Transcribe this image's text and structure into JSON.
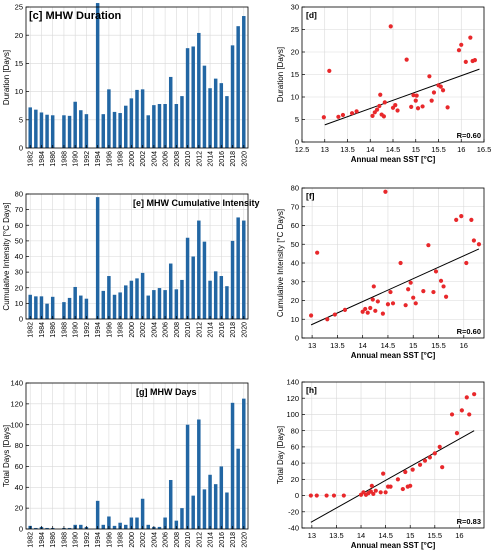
{
  "colors": {
    "bar": "#2266a3",
    "dot": "#e8282b",
    "fit": "#000000",
    "grid": "#d9d9d9"
  },
  "chart_data": [
    {
      "id": "c",
      "type": "bar",
      "title": "[c] MHW Duration",
      "ylabel": "Duration [Days]",
      "ylim": [
        0,
        25
      ],
      "yticks": [
        0,
        5,
        10,
        15,
        20,
        25
      ],
      "x": [
        1982,
        1983,
        1984,
        1985,
        1986,
        1987,
        1988,
        1989,
        1990,
        1991,
        1992,
        1993,
        1994,
        1995,
        1996,
        1997,
        1998,
        1999,
        2000,
        2001,
        2002,
        2003,
        2004,
        2005,
        2006,
        2007,
        2008,
        2009,
        2010,
        2011,
        2012,
        2013,
        2014,
        2015,
        2016,
        2017,
        2018,
        2019,
        2020
      ],
      "values": [
        7.2,
        6.8,
        6.3,
        5.9,
        5.8,
        null,
        5.8,
        5.7,
        8.2,
        6.7,
        6.0,
        null,
        25.7,
        6.0,
        10.4,
        6.4,
        6.2,
        7.5,
        8.8,
        10.3,
        10.4,
        5.8,
        7.6,
        7.8,
        7.8,
        12.6,
        7.8,
        9.2,
        17.7,
        18.0,
        20.4,
        14.6,
        10.6,
        12.3,
        11.5,
        9.2,
        18.2,
        21.6,
        23.4
      ],
      "xticklabels": [
        "1982",
        "1984",
        "1986",
        "1988",
        "1990",
        "1992",
        "1994",
        "1996",
        "1998",
        "2000",
        "2002",
        "2004",
        "2006",
        "2008",
        "2010",
        "2012",
        "2014",
        "2016",
        "2018",
        "2020"
      ],
      "grid": true
    },
    {
      "id": "d",
      "type": "scatter",
      "title": "[d]",
      "xlabel": "Annual mean SST [°C]",
      "ylabel": "Duration [Days]",
      "xlim": [
        12.5,
        16.5
      ],
      "ylim": [
        0,
        30
      ],
      "xticks": [
        12.5,
        13,
        13.5,
        14,
        14.5,
        15,
        15.5,
        16,
        16.5
      ],
      "xticklabels": [
        "12.5",
        "13",
        "13.5",
        "14",
        "14.5",
        "15",
        "15.5",
        "16",
        "16.5"
      ],
      "yticks": [
        0,
        5,
        10,
        15,
        20,
        25,
        30
      ],
      "r_label": "R=0.60",
      "fit_line": [
        [
          13.0,
          3.8
        ],
        [
          16.4,
          16.2
        ]
      ],
      "points": [
        [
          12.98,
          5.5
        ],
        [
          13.1,
          15.8
        ],
        [
          13.3,
          5.6
        ],
        [
          13.4,
          6.0
        ],
        [
          13.6,
          6.4
        ],
        [
          13.7,
          6.8
        ],
        [
          14.05,
          5.8
        ],
        [
          14.1,
          6.6
        ],
        [
          14.15,
          7.2
        ],
        [
          14.2,
          8.0
        ],
        [
          14.22,
          10.5
        ],
        [
          14.25,
          6.1
        ],
        [
          14.3,
          5.7
        ],
        [
          14.32,
          8.8
        ],
        [
          14.45,
          25.7
        ],
        [
          14.5,
          7.6
        ],
        [
          14.55,
          8.2
        ],
        [
          14.6,
          7.0
        ],
        [
          14.8,
          18.3
        ],
        [
          14.9,
          7.8
        ],
        [
          14.95,
          10.4
        ],
        [
          15.0,
          9.2
        ],
        [
          15.02,
          10.3
        ],
        [
          15.05,
          7.5
        ],
        [
          15.15,
          7.9
        ],
        [
          15.3,
          14.6
        ],
        [
          15.35,
          9.2
        ],
        [
          15.4,
          11.0
        ],
        [
          15.5,
          12.6
        ],
        [
          15.55,
          12.3
        ],
        [
          15.6,
          11.5
        ],
        [
          15.7,
          7.7
        ],
        [
          15.95,
          20.4
        ],
        [
          16.0,
          21.6
        ],
        [
          16.1,
          17.8
        ],
        [
          16.2,
          23.2
        ],
        [
          16.25,
          18.0
        ],
        [
          16.3,
          18.2
        ]
      ],
      "grid": true
    },
    {
      "id": "e",
      "type": "bar",
      "title": "[e] MHW Cumulative Intensity",
      "ylabel": "Cumulative Intensity [°C Days]",
      "ylim": [
        0,
        80
      ],
      "yticks": [
        0,
        10,
        20,
        30,
        40,
        50,
        60,
        70,
        80
      ],
      "x": [
        1982,
        1983,
        1984,
        1985,
        1986,
        1987,
        1988,
        1989,
        1990,
        1991,
        1992,
        1993,
        1994,
        1995,
        1996,
        1997,
        1998,
        1999,
        2000,
        2001,
        2002,
        2003,
        2004,
        2005,
        2006,
        2007,
        2008,
        2009,
        2010,
        2011,
        2012,
        2013,
        2014,
        2015,
        2016,
        2017,
        2018,
        2019,
        2020
      ],
      "values": [
        15.5,
        14.5,
        14.5,
        9.8,
        14.2,
        null,
        10.8,
        13.5,
        20.5,
        15.0,
        13.0,
        null,
        78.0,
        18.0,
        27.5,
        15.5,
        17.0,
        21.5,
        24.5,
        26.0,
        29.5,
        15.0,
        18.5,
        19.8,
        18.5,
        35.5,
        19.0,
        25.0,
        52.0,
        40.0,
        63.0,
        49.5,
        24.5,
        30.5,
        27.5,
        21.0,
        50.0,
        65.0,
        63.0
      ],
      "xticklabels": [
        "1982",
        "1984",
        "1986",
        "1988",
        "1990",
        "1992",
        "1994",
        "1996",
        "1998",
        "2000",
        "2002",
        "2004",
        "2006",
        "2008",
        "2010",
        "2012",
        "2014",
        "2016",
        "2018",
        "2020"
      ],
      "grid": true
    },
    {
      "id": "f",
      "type": "scatter",
      "title": "[f]",
      "xlabel": "Annual mean SST [°C]",
      "ylabel": "Cumulative Intensity [°C Days]",
      "xlim": [
        12.8,
        16.4
      ],
      "ylim": [
        0,
        80
      ],
      "xticks": [
        13,
        13.5,
        14,
        14.5,
        15,
        15.5,
        16
      ],
      "xticklabels": [
        "13",
        "13.5",
        "14",
        "14.5",
        "15",
        "15.5",
        "16"
      ],
      "yticks": [
        0,
        10,
        20,
        30,
        40,
        50,
        60,
        70,
        80
      ],
      "r_label": "R=0.60",
      "fit_line": [
        [
          12.98,
          7.0
        ],
        [
          16.3,
          47.5
        ]
      ],
      "points": [
        [
          12.98,
          12.0
        ],
        [
          13.1,
          45.5
        ],
        [
          13.3,
          10.0
        ],
        [
          13.45,
          12.5
        ],
        [
          13.65,
          15.0
        ],
        [
          14.0,
          14.0
        ],
        [
          14.05,
          15.5
        ],
        [
          14.1,
          13.5
        ],
        [
          14.15,
          16.0
        ],
        [
          14.2,
          20.5
        ],
        [
          14.22,
          27.5
        ],
        [
          14.25,
          14.5
        ],
        [
          14.3,
          19.5
        ],
        [
          14.4,
          13.0
        ],
        [
          14.45,
          78.0
        ],
        [
          14.5,
          18.0
        ],
        [
          14.55,
          24.5
        ],
        [
          14.6,
          18.5
        ],
        [
          14.75,
          40.0
        ],
        [
          14.85,
          17.5
        ],
        [
          14.9,
          26.0
        ],
        [
          14.95,
          29.5
        ],
        [
          15.0,
          21.5
        ],
        [
          15.05,
          18.5
        ],
        [
          15.2,
          25.0
        ],
        [
          15.3,
          49.5
        ],
        [
          15.4,
          24.5
        ],
        [
          15.45,
          35.5
        ],
        [
          15.55,
          30.5
        ],
        [
          15.6,
          27.5
        ],
        [
          15.65,
          22.0
        ],
        [
          15.85,
          63.0
        ],
        [
          15.95,
          65.0
        ],
        [
          16.05,
          40.0
        ],
        [
          16.15,
          63.0
        ],
        [
          16.2,
          52.0
        ],
        [
          16.3,
          50.0
        ]
      ],
      "grid": true
    },
    {
      "id": "g",
      "type": "bar",
      "title": "[g] MHW Days",
      "ylabel": "Total Days [Days]",
      "ylim": [
        0,
        140
      ],
      "yticks": [
        0,
        20,
        40,
        60,
        80,
        100,
        120,
        140
      ],
      "x": [
        1982,
        1983,
        1984,
        1985,
        1986,
        1987,
        1988,
        1989,
        1990,
        1991,
        1992,
        1993,
        1994,
        1995,
        1996,
        1997,
        1998,
        1999,
        2000,
        2001,
        2002,
        2003,
        2004,
        2005,
        2006,
        2007,
        2008,
        2009,
        2010,
        2011,
        2012,
        2013,
        2014,
        2015,
        2016,
        2017,
        2018,
        2019,
        2020
      ],
      "values": [
        3,
        1,
        2,
        1,
        1,
        null,
        1,
        1,
        4,
        4,
        2,
        null,
        27,
        4,
        12,
        3,
        6,
        4,
        11,
        11,
        29,
        4,
        2,
        2,
        11,
        47,
        8,
        20,
        100,
        32,
        105,
        38,
        52,
        43,
        60,
        35,
        121,
        77,
        125
      ],
      "xticklabels": [
        "1982",
        "1984",
        "1986",
        "1988",
        "1990",
        "1992",
        "1994",
        "1996",
        "1998",
        "2000",
        "2002",
        "2004",
        "2006",
        "2008",
        "2010",
        "2012",
        "2014",
        "2016",
        "2018",
        "2020"
      ],
      "grid": true
    },
    {
      "id": "h",
      "type": "scatter",
      "title": "[h]",
      "xlabel": "Annual mean SST [°C]",
      "ylabel": "Total Day [Days]",
      "xlim": [
        12.8,
        16.5
      ],
      "ylim": [
        -40,
        140
      ],
      "xticks": [
        13,
        13.5,
        14,
        14.5,
        15,
        15.5,
        16
      ],
      "xticklabels": [
        "13",
        "13.5",
        "14",
        "14.5",
        "15",
        "15.5",
        "16"
      ],
      "yticks": [
        -40,
        -20,
        0,
        20,
        40,
        60,
        80,
        100,
        120,
        140
      ],
      "r_label": "R=0.83",
      "fit_line": [
        [
          12.98,
          -33
        ],
        [
          16.3,
          80
        ]
      ],
      "points": [
        [
          12.98,
          0
        ],
        [
          13.1,
          0
        ],
        [
          13.3,
          0
        ],
        [
          13.45,
          0
        ],
        [
          13.65,
          0
        ],
        [
          14.0,
          1
        ],
        [
          14.05,
          4
        ],
        [
          14.1,
          1
        ],
        [
          14.15,
          3
        ],
        [
          14.2,
          5
        ],
        [
          14.22,
          12
        ],
        [
          14.25,
          2
        ],
        [
          14.3,
          6
        ],
        [
          14.4,
          4
        ],
        [
          14.45,
          27
        ],
        [
          14.5,
          4
        ],
        [
          14.55,
          11
        ],
        [
          14.6,
          11
        ],
        [
          14.75,
          20
        ],
        [
          14.85,
          8
        ],
        [
          14.9,
          29
        ],
        [
          14.95,
          11
        ],
        [
          15.0,
          12
        ],
        [
          15.05,
          32
        ],
        [
          15.2,
          38
        ],
        [
          15.3,
          43
        ],
        [
          15.4,
          47
        ],
        [
          15.5,
          52
        ],
        [
          15.6,
          60
        ],
        [
          15.65,
          35
        ],
        [
          15.85,
          100
        ],
        [
          15.95,
          77
        ],
        [
          16.05,
          105
        ],
        [
          16.15,
          121
        ],
        [
          16.2,
          100
        ],
        [
          16.3,
          125
        ]
      ],
      "grid": true
    }
  ]
}
